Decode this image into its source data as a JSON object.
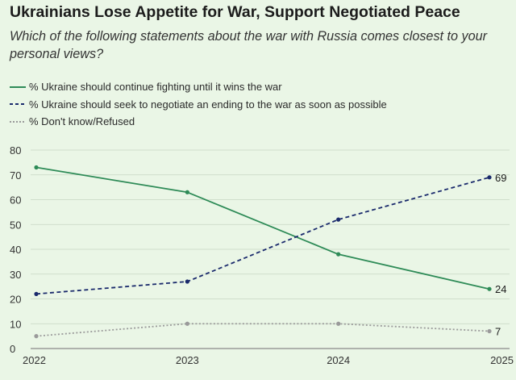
{
  "chart_data": {
    "type": "line",
    "title": "Ukrainians Lose Appetite for War, Support Negotiated Peace",
    "subtitle": "Which of the following statements about the war with Russia comes closest to your personal views?",
    "categories": [
      "2022",
      "2023",
      "2024",
      "2025"
    ],
    "ylim": [
      0,
      80
    ],
    "yticks": [
      0,
      10,
      20,
      30,
      40,
      50,
      60,
      70,
      80
    ],
    "grid": true,
    "legend_position": "top-left",
    "series": [
      {
        "name": "% Ukraine should continue fighting until it wins the war",
        "values": [
          73,
          63,
          38,
          24
        ],
        "color": "#2e8b57",
        "style": "solid",
        "end_label": "24"
      },
      {
        "name": "% Ukraine should seek to negotiate an ending to the war as soon as possible",
        "values": [
          22,
          27,
          52,
          69
        ],
        "color": "#1a2a6c",
        "style": "dashed",
        "end_label": "69"
      },
      {
        "name": "% Don't know/Refused",
        "values": [
          5,
          10,
          10,
          7
        ],
        "color": "#9a9a9a",
        "style": "dotted",
        "end_label": "7"
      }
    ]
  }
}
